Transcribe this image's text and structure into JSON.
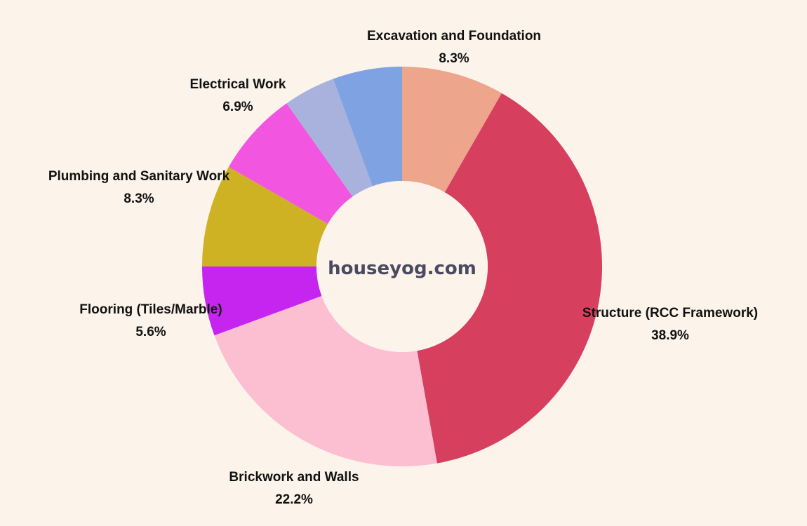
{
  "chart_data": {
    "type": "pie",
    "donut": true,
    "center_label": "houseyog.com",
    "slices": [
      {
        "label": "Excavation and Foundation",
        "value": 8.3,
        "display": "8.3%",
        "color": "#eda58c"
      },
      {
        "label": "Structure (RCC Framework)",
        "value": 38.9,
        "display": "38.9%",
        "color": "#d63f5e"
      },
      {
        "label": "Brickwork and Walls",
        "value": 22.2,
        "display": "22.2%",
        "color": "#fcbfd2"
      },
      {
        "label": "Flooring (Tiles/Marble)",
        "value": 5.6,
        "display": "5.6%",
        "color": "#c525ee"
      },
      {
        "label": "Plumbing and Sanitary Work",
        "value": 8.3,
        "display": "8.3%",
        "color": "#cfb124"
      },
      {
        "label": "Electrical Work",
        "value": 6.9,
        "display": "6.9%",
        "color": "#f255df"
      },
      {
        "label": "",
        "value": 4.2,
        "display": "",
        "color": "#a9b1dd"
      },
      {
        "label": "",
        "value": 5.6,
        "display": "",
        "color": "#7fa3e2"
      }
    ],
    "start_angle": "top",
    "direction": "clockwise",
    "background_color": "#fcf4ea"
  }
}
